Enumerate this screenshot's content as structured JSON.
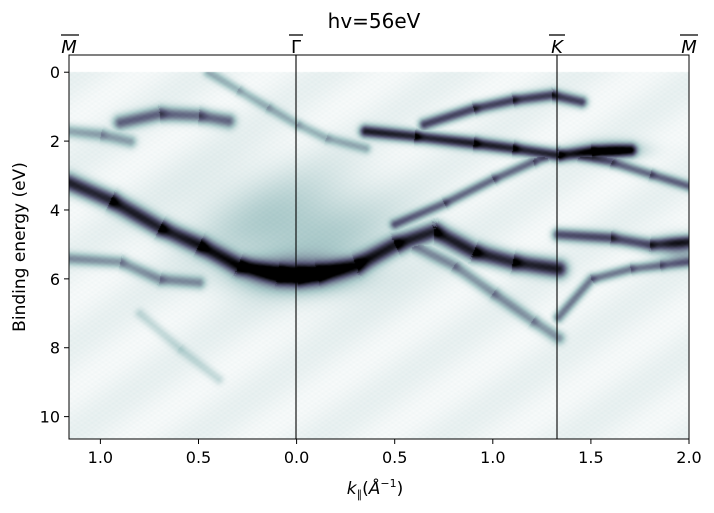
{
  "chart_data": {
    "type": "heatmap",
    "title": "hv=56eV",
    "xlabel": "k",
    "xlabel_sub": "∥",
    "xlabel_unit_open": "(",
    "xlabel_unit_base": "Å",
    "xlabel_unit_exp": "−1",
    "xlabel_unit_close": ")",
    "ylabel": "Binding energy (eV)",
    "xlim": [
      -1.16,
      2.0
    ],
    "ylim": [
      10.65,
      -0.5
    ],
    "y_inverted": true,
    "x_ticks": [
      {
        "value": -1.0,
        "label": "1.0"
      },
      {
        "value": -0.5,
        "label": "0.5"
      },
      {
        "value": 0.0,
        "label": "0.0"
      },
      {
        "value": 0.5,
        "label": "0.5"
      },
      {
        "value": 1.0,
        "label": "1.0"
      },
      {
        "value": 1.5,
        "label": "1.5"
      },
      {
        "value": 2.0,
        "label": "2.0"
      }
    ],
    "y_ticks": [
      {
        "value": 0,
        "label": "0"
      },
      {
        "value": 2,
        "label": "2"
      },
      {
        "value": 4,
        "label": "4"
      },
      {
        "value": 6,
        "label": "6"
      },
      {
        "value": 8,
        "label": "8"
      },
      {
        "value": 10,
        "label": "10"
      }
    ],
    "high_symmetry_points": [
      {
        "label": "M",
        "x": -1.16,
        "line": false
      },
      {
        "label": "Γ",
        "x": 0.0,
        "line": true
      },
      {
        "label": "K",
        "x": 1.333,
        "line": true
      },
      {
        "label": "M",
        "x": 2.0,
        "line": false
      }
    ],
    "colormap": "bone_r",
    "bands": [
      {
        "points": [
          [
            -1.16,
            3.2
          ],
          [
            -0.95,
            3.7
          ],
          [
            -0.7,
            4.5
          ],
          [
            -0.5,
            5.0
          ],
          [
            -0.3,
            5.6
          ],
          [
            -0.1,
            5.85
          ],
          [
            0.0,
            5.9
          ],
          [
            0.1,
            5.85
          ],
          [
            0.3,
            5.6
          ],
          [
            0.5,
            5.0
          ],
          [
            0.7,
            4.6
          ],
          [
            0.9,
            5.2
          ],
          [
            1.1,
            5.5
          ],
          [
            1.333,
            5.7
          ]
        ],
        "intensity": 0.85,
        "width": 0.42
      },
      {
        "points": [
          [
            -0.9,
            1.45
          ],
          [
            -0.7,
            1.2
          ],
          [
            -0.5,
            1.25
          ],
          [
            -0.35,
            1.4
          ]
        ],
        "intensity": 0.55,
        "width": 0.35
      },
      {
        "points": [
          [
            0.35,
            1.7
          ],
          [
            0.6,
            1.85
          ],
          [
            0.9,
            2.05
          ],
          [
            1.1,
            2.2
          ],
          [
            1.333,
            2.4
          ],
          [
            1.5,
            2.3
          ],
          [
            1.7,
            2.25
          ]
        ],
        "intensity": 0.85,
        "width": 0.3
      },
      {
        "points": [
          [
            0.65,
            1.5
          ],
          [
            0.9,
            1.05
          ],
          [
            1.1,
            0.8
          ],
          [
            1.3,
            0.65
          ],
          [
            1.45,
            0.85
          ]
        ],
        "intensity": 0.7,
        "width": 0.28
      },
      {
        "points": [
          [
            0.5,
            4.4
          ],
          [
            0.75,
            3.8
          ],
          [
            1.0,
            3.1
          ],
          [
            1.2,
            2.6
          ],
          [
            1.333,
            2.3
          ],
          [
            1.6,
            2.6
          ],
          [
            1.8,
            2.95
          ],
          [
            2.0,
            3.3
          ]
        ],
        "intensity": 0.55,
        "width": 0.25
      },
      {
        "points": [
          [
            0.55,
            4.9
          ],
          [
            0.8,
            5.6
          ],
          [
            1.0,
            6.4
          ],
          [
            1.2,
            7.2
          ],
          [
            1.333,
            7.7
          ]
        ],
        "intensity": 0.4,
        "width": 0.3
      },
      {
        "points": [
          [
            1.333,
            4.7
          ],
          [
            1.6,
            4.8
          ],
          [
            1.8,
            5.0
          ],
          [
            2.0,
            4.9
          ]
        ],
        "intensity": 0.65,
        "width": 0.3
      },
      {
        "points": [
          [
            1.333,
            7.1
          ],
          [
            1.5,
            6.0
          ],
          [
            1.7,
            5.7
          ],
          [
            1.85,
            5.6
          ],
          [
            2.0,
            5.5
          ]
        ],
        "intensity": 0.5,
        "width": 0.25
      },
      {
        "points": [
          [
            -1.16,
            5.4
          ],
          [
            -0.9,
            5.5
          ],
          [
            -0.7,
            6.0
          ],
          [
            -0.5,
            6.1
          ]
        ],
        "intensity": 0.4,
        "width": 0.3
      },
      {
        "points": [
          [
            -0.8,
            7.0
          ],
          [
            -0.6,
            8.0
          ],
          [
            -0.4,
            8.9
          ]
        ],
        "intensity": 0.15,
        "width": 0.25
      },
      {
        "points": [
          [
            -0.45,
            0.0
          ],
          [
            -0.3,
            0.5
          ],
          [
            -0.15,
            1.0
          ],
          [
            0.0,
            1.5
          ],
          [
            0.15,
            1.9
          ],
          [
            0.35,
            2.2
          ]
        ],
        "intensity": 0.3,
        "width": 0.25
      },
      {
        "points": [
          [
            -1.16,
            1.7
          ],
          [
            -1.0,
            1.8
          ],
          [
            -0.85,
            2.0
          ]
        ],
        "intensity": 0.35,
        "width": 0.3
      }
    ],
    "blobs": [
      {
        "x": 0.0,
        "y": 4.6,
        "rx": 0.45,
        "ry": 1.5,
        "intensity": 0.22
      },
      {
        "x": 0.0,
        "y": 5.85,
        "rx": 0.25,
        "ry": 0.45,
        "intensity": 0.5
      },
      {
        "x": 1.6,
        "y": 2.25,
        "rx": 0.15,
        "ry": 0.25,
        "intensity": 0.35
      },
      {
        "x": 1.95,
        "y": 5.1,
        "rx": 0.12,
        "ry": 0.35,
        "intensity": 0.35
      }
    ]
  }
}
